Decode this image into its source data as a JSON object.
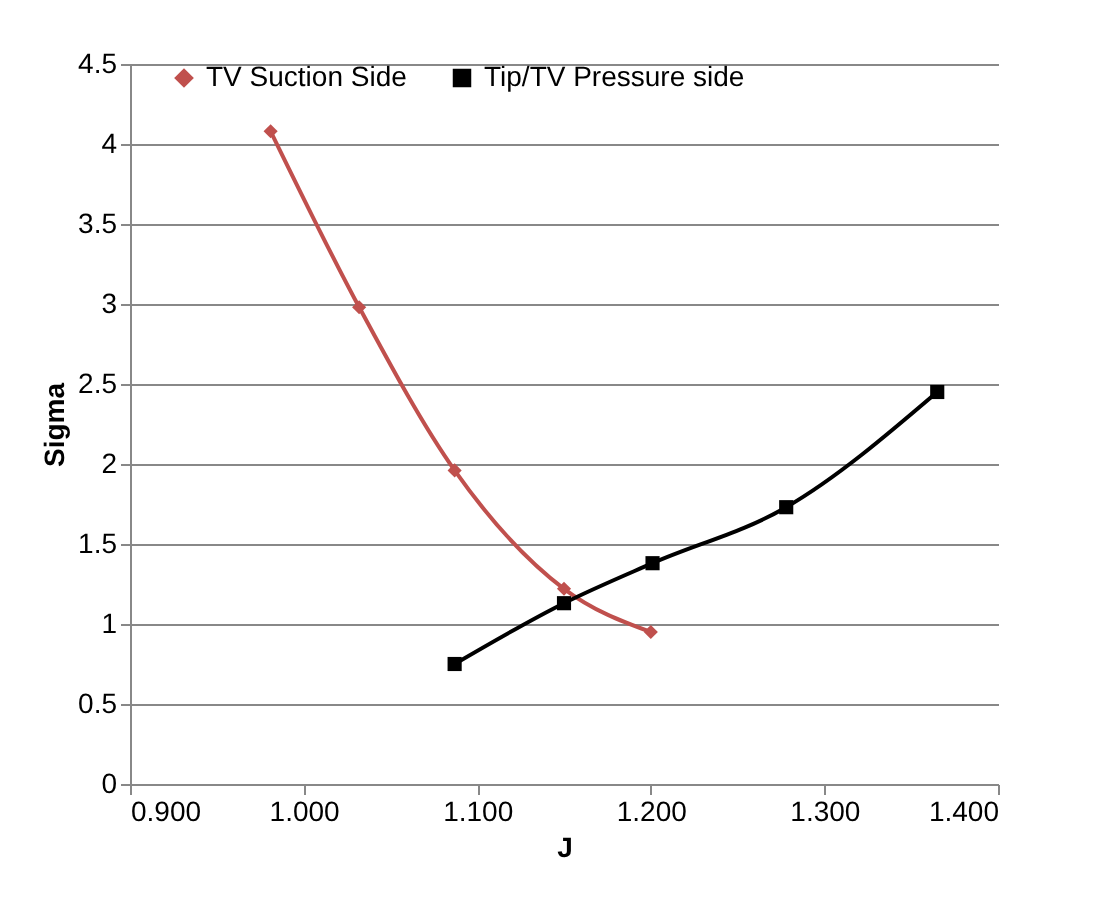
{
  "chart_data": {
    "type": "line",
    "xlabel": "J",
    "ylabel": "Sigma",
    "series": [
      {
        "name": "TV Suction Side",
        "color": "#c0504d",
        "marker": "diamond",
        "x": [
          0.981,
          1.032,
          1.087,
          1.15,
          1.2
        ],
        "values": [
          4.08,
          2.98,
          1.96,
          1.22,
          0.95
        ]
      },
      {
        "name": "Tip/TV Pressure side",
        "color": "#000000",
        "marker": "square",
        "x": [
          1.087,
          1.15,
          1.201,
          1.278,
          1.365
        ],
        "values": [
          0.75,
          1.13,
          1.38,
          1.73,
          2.45
        ]
      }
    ],
    "xlim": [
      0.9,
      1.4
    ],
    "xticks": [
      {
        "value": 0.9,
        "label": "0.900"
      },
      {
        "value": 1.0,
        "label": "1.000"
      },
      {
        "value": 1.1,
        "label": "1.100"
      },
      {
        "value": 1.2,
        "label": "1.200"
      },
      {
        "value": 1.3,
        "label": "1.300"
      },
      {
        "value": 1.4,
        "label": "1.400"
      }
    ],
    "ylim": [
      0,
      4.5
    ],
    "yticks": [
      0,
      0.5,
      1,
      1.5,
      2,
      2.5,
      3,
      3.5,
      4,
      4.5
    ],
    "grid": "y",
    "legend": "top",
    "line_style": "solid"
  }
}
